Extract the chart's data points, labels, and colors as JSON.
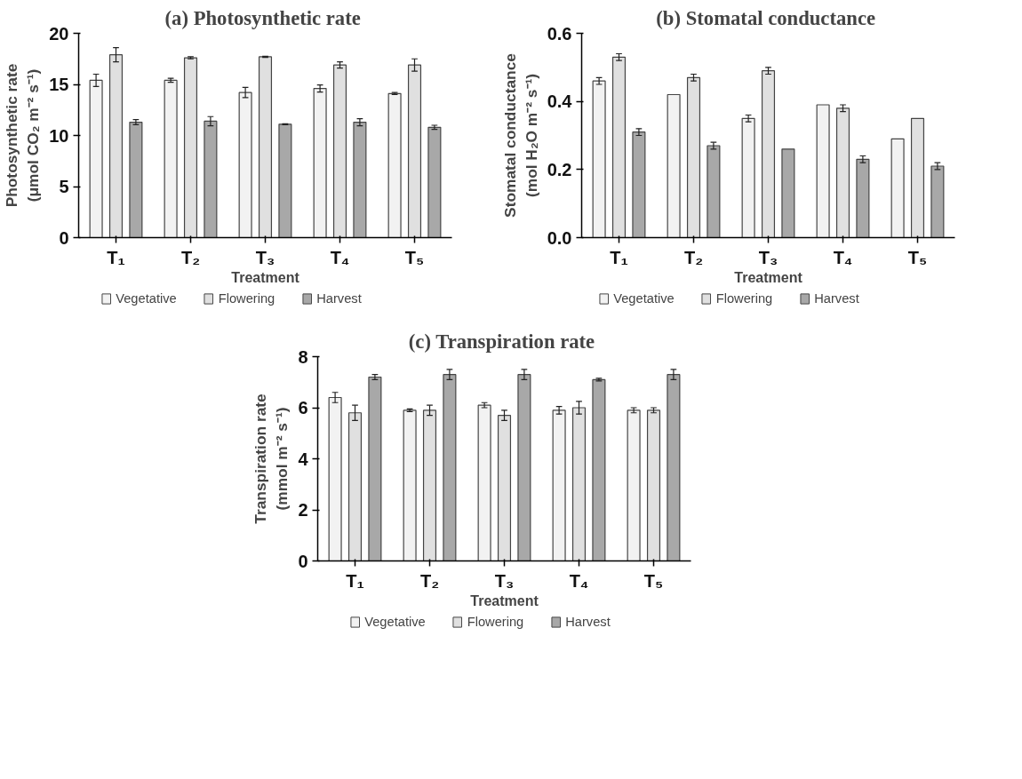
{
  "chart_data": [
    {
      "type": "bar",
      "title": "(a)  Photosynthetic rate",
      "xlabel": "Treatment",
      "ylabel": "Photosynthetic rate\n(μmol CO₂ m⁻² s⁻¹)",
      "categories": [
        "T₁",
        "T₂",
        "T₃",
        "T₄",
        "T₅"
      ],
      "ylim": [
        0,
        20
      ],
      "yticks": [
        0,
        5,
        10,
        15,
        20
      ],
      "grid": false,
      "legend": "bottom",
      "series": [
        {
          "name": "Vegetative",
          "color": "#f2f2f2",
          "values": [
            15.4,
            15.4,
            14.2,
            14.6,
            14.1
          ],
          "errors": [
            0.6,
            0.2,
            0.5,
            0.35,
            0.1
          ]
        },
        {
          "name": "Flowering",
          "color": "#e0e0e0",
          "values": [
            17.9,
            17.6,
            17.7,
            16.9,
            16.9
          ],
          "errors": [
            0.7,
            0.1,
            0.05,
            0.3,
            0.6
          ]
        },
        {
          "name": "Harvest",
          "color": "#a8a8a8",
          "values": [
            11.3,
            11.4,
            11.1,
            11.3,
            10.8
          ],
          "errors": [
            0.25,
            0.45,
            0.05,
            0.35,
            0.2
          ]
        }
      ]
    },
    {
      "type": "bar",
      "title": "(b)  Stomatal conductance",
      "xlabel": "Treatment",
      "ylabel": "Stomatal conductance\n(mol H₂O m⁻² s⁻¹)",
      "categories": [
        "T₁",
        "T₂",
        "T₃",
        "T₄",
        "T₅"
      ],
      "ylim": [
        0,
        0.6
      ],
      "yticks": [
        {
          "value": 0,
          "label": "0.0"
        },
        0.2,
        0.4,
        0.6
      ],
      "grid": false,
      "legend": "bottom",
      "series": [
        {
          "name": "Vegetative",
          "color": "#f2f2f2",
          "values": [
            0.46,
            0.42,
            0.35,
            0.39,
            0.29
          ],
          "errors": [
            0.01,
            null,
            0.01,
            null,
            null
          ]
        },
        {
          "name": "Flowering",
          "color": "#e0e0e0",
          "values": [
            0.53,
            0.47,
            0.49,
            0.38,
            0.35
          ],
          "errors": [
            0.01,
            0.01,
            0.01,
            0.01,
            null
          ]
        },
        {
          "name": "Harvest",
          "color": "#a8a8a8",
          "values": [
            0.31,
            0.27,
            0.26,
            0.23,
            0.21
          ],
          "errors": [
            0.01,
            0.01,
            null,
            0.01,
            0.01
          ]
        }
      ]
    },
    {
      "type": "bar",
      "title": "(c)  Transpiration rate",
      "xlabel": "Treatment",
      "ylabel": "Transpiration rate\n(mmol m⁻² s⁻¹)",
      "categories": [
        "T₁",
        "T₂",
        "T₃",
        "T₄",
        "T₅"
      ],
      "ylim": [
        0,
        8
      ],
      "yticks": [
        0,
        2,
        4,
        6,
        8
      ],
      "grid": false,
      "legend": "bottom",
      "series": [
        {
          "name": "Vegetative",
          "color": "#f2f2f2",
          "values": [
            6.4,
            5.9,
            6.1,
            5.9,
            5.9
          ],
          "errors": [
            0.2,
            0.05,
            0.1,
            0.15,
            0.1
          ]
        },
        {
          "name": "Flowering",
          "color": "#e0e0e0",
          "values": [
            5.8,
            5.9,
            5.7,
            6.0,
            5.9
          ],
          "errors": [
            0.3,
            0.2,
            0.2,
            0.25,
            0.1
          ]
        },
        {
          "name": "Harvest",
          "color": "#a8a8a8",
          "values": [
            7.2,
            7.3,
            7.3,
            7.1,
            7.3
          ],
          "errors": [
            0.1,
            0.2,
            0.2,
            0.05,
            0.2
          ]
        }
      ]
    }
  ]
}
